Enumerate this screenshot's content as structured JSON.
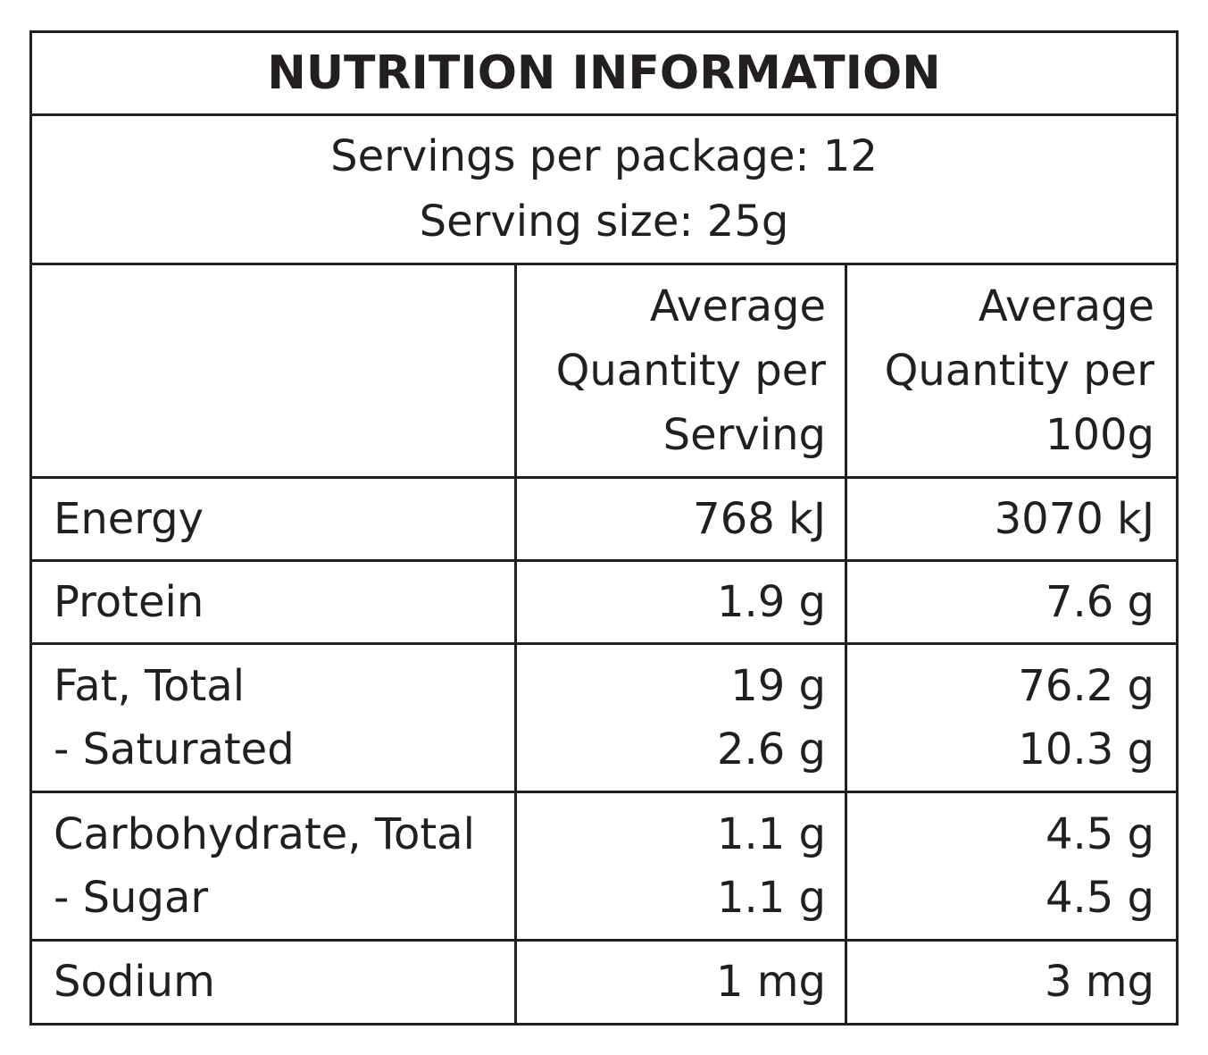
{
  "title": "NUTRITION INFORMATION",
  "servings_per_package": "Servings per package: 12",
  "serving_size": "Serving size: 25g",
  "columns": {
    "per_serving": [
      "Average",
      "Quantity per",
      "Serving"
    ],
    "per_100g": [
      "Average",
      "Quantity per",
      "100g"
    ]
  },
  "rows": [
    {
      "labels": [
        "Energy"
      ],
      "per_serving": [
        "768 kJ"
      ],
      "per_100g": [
        "3070 kJ"
      ]
    },
    {
      "labels": [
        "Protein"
      ],
      "per_serving": [
        "1.9 g"
      ],
      "per_100g": [
        "7.6 g"
      ]
    },
    {
      "labels": [
        "Fat, Total",
        "- Saturated"
      ],
      "per_serving": [
        "19 g",
        "2.6 g"
      ],
      "per_100g": [
        "76.2 g",
        "10.3 g"
      ]
    },
    {
      "labels": [
        "Carbohydrate, Total",
        "- Sugar"
      ],
      "per_serving": [
        "1.1 g",
        "1.1 g"
      ],
      "per_100g": [
        "4.5 g",
        "4.5 g"
      ]
    },
    {
      "labels": [
        "Sodium"
      ],
      "per_serving": [
        "1 mg"
      ],
      "per_100g": [
        "3 mg"
      ]
    }
  ]
}
